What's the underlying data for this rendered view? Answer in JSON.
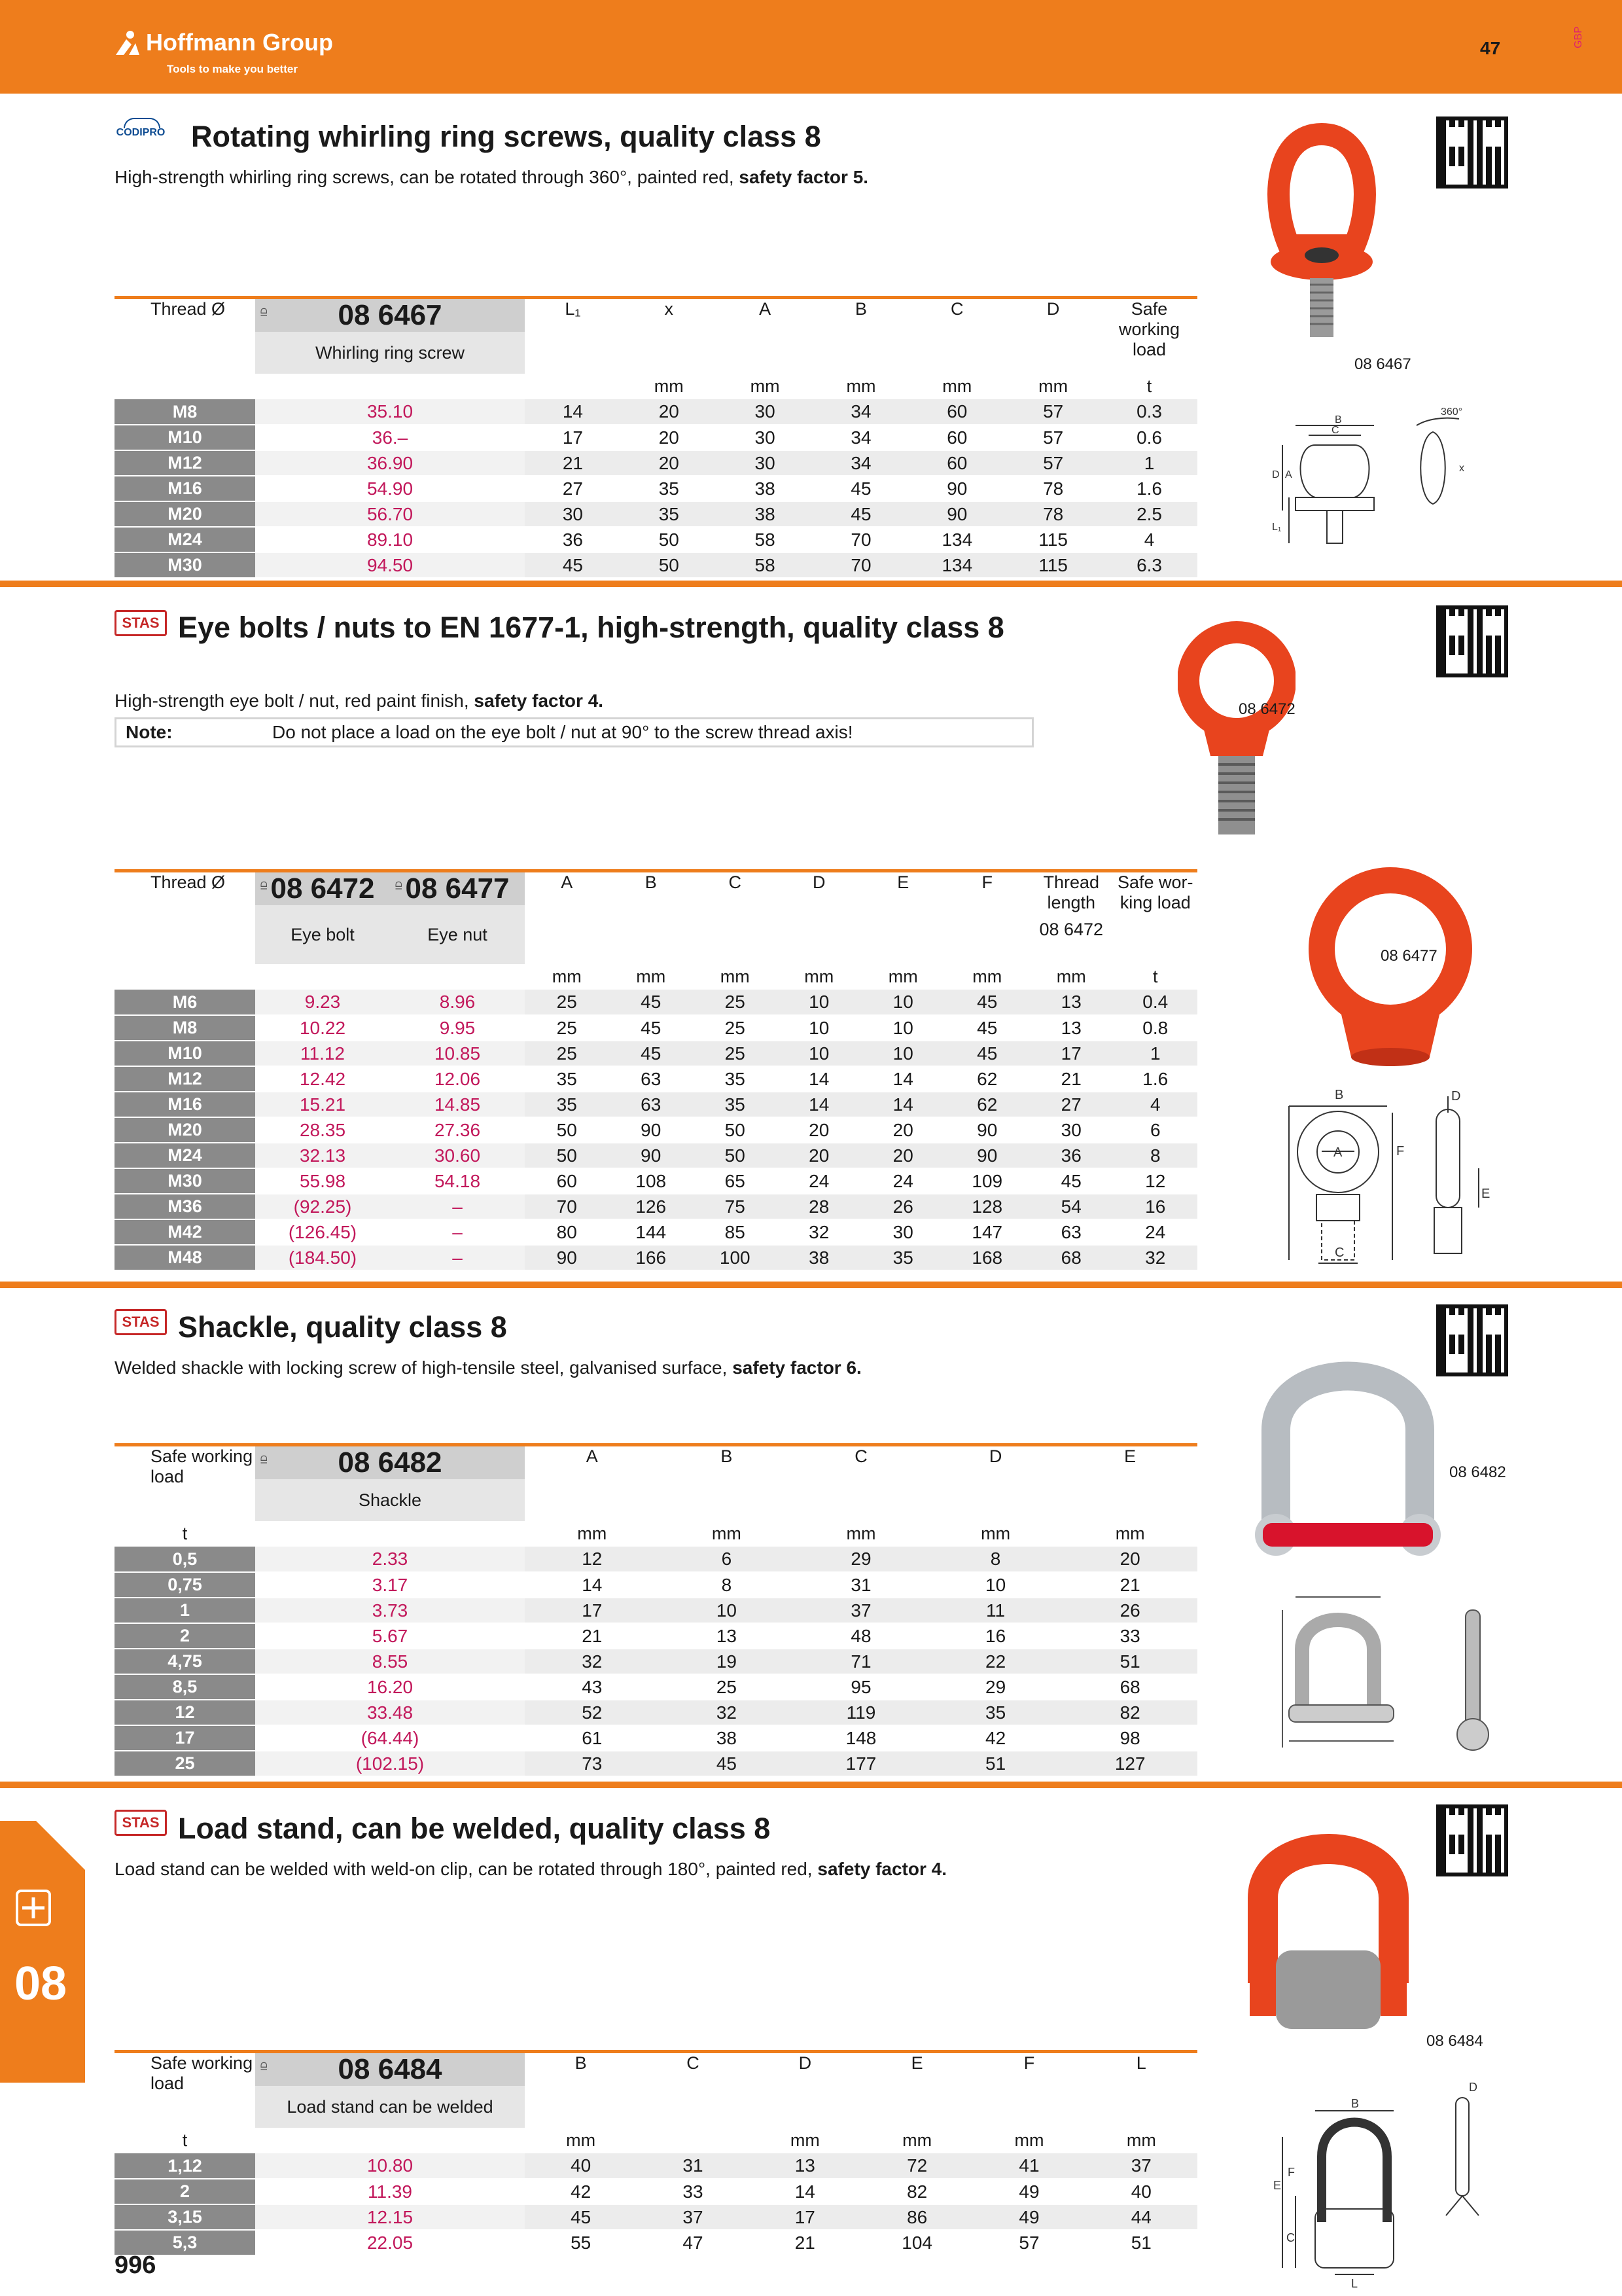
{
  "header": {
    "brand": "Hoffmann Group",
    "tagline": "Tools to make you better",
    "page": "47",
    "lang": "GBP"
  },
  "sections": [
    {
      "brand": "CODIPRO",
      "title": "Rotating whirling ring screws, quality class 8",
      "desc_plain": "High-strength whirling ring screws, can be rotated through 360°, painted red, ",
      "desc_bold": "safety factor 5.",
      "table": {
        "row_header": "Thread Ø",
        "articles": [
          {
            "number": "08 6467",
            "name": "Whirling ring screw"
          }
        ],
        "columns": [
          {
            "label": "L₁",
            "unit": ""
          },
          {
            "label": "x",
            "unit": "mm"
          },
          {
            "label": "A",
            "unit": "mm"
          },
          {
            "label": "B",
            "unit": "mm"
          },
          {
            "label": "C",
            "unit": "mm"
          },
          {
            "label": "D",
            "unit": "mm"
          },
          {
            "label": "Safe working load",
            "unit": "t"
          }
        ],
        "rows": [
          {
            "label": "M8",
            "prices": [
              "35.10"
            ],
            "values": [
              "14",
              "20",
              "30",
              "34",
              "60",
              "57",
              "0.3"
            ]
          },
          {
            "label": "M10",
            "prices": [
              "36.–"
            ],
            "values": [
              "17",
              "20",
              "30",
              "34",
              "60",
              "57",
              "0.6"
            ]
          },
          {
            "label": "M12",
            "prices": [
              "36.90"
            ],
            "values": [
              "21",
              "20",
              "30",
              "34",
              "60",
              "57",
              "1"
            ]
          },
          {
            "label": "M16",
            "prices": [
              "54.90"
            ],
            "values": [
              "27",
              "35",
              "38",
              "45",
              "90",
              "78",
              "1.6"
            ]
          },
          {
            "label": "M20",
            "prices": [
              "56.70"
            ],
            "values": [
              "30",
              "35",
              "38",
              "45",
              "90",
              "78",
              "2.5"
            ]
          },
          {
            "label": "M24",
            "prices": [
              "89.10"
            ],
            "values": [
              "36",
              "50",
              "58",
              "70",
              "134",
              "115",
              "4"
            ]
          },
          {
            "label": "M30",
            "prices": [
              "94.50"
            ],
            "values": [
              "45",
              "50",
              "58",
              "70",
              "134",
              "115",
              "6.3"
            ]
          }
        ]
      },
      "image_refs": [
        "08 6467"
      ],
      "dim_labels": [
        "B",
        "C",
        "D",
        "A",
        "L₁",
        "360°",
        "x"
      ]
    },
    {
      "brand": "STAS",
      "title": "Eye bolts / nuts to EN 1677-1, high-strength, quality class 8",
      "desc_plain": "High-strength eye bolt / nut, red paint finish, ",
      "desc_bold": "safety factor 4.",
      "note_label": "Note:",
      "note_text": "Do not place a load on the eye bolt / nut at 90° to the screw thread axis!",
      "table": {
        "row_header": "Thread Ø",
        "articles": [
          {
            "number": "08 6472",
            "name": "Eye bolt"
          },
          {
            "number": "08 6477",
            "name": "Eye nut"
          }
        ],
        "columns": [
          {
            "label": "A",
            "unit": "mm"
          },
          {
            "label": "B",
            "unit": "mm"
          },
          {
            "label": "C",
            "unit": "mm"
          },
          {
            "label": "D",
            "unit": "mm"
          },
          {
            "label": "E",
            "unit": "mm"
          },
          {
            "label": "F",
            "unit": "mm"
          },
          {
            "label": "Thread length",
            "sub": "08 6472",
            "unit": "mm"
          },
          {
            "label": "Safe wor-king load",
            "unit": "t"
          }
        ],
        "rows": [
          {
            "label": "M6",
            "prices": [
              "9.23",
              "8.96"
            ],
            "values": [
              "25",
              "45",
              "25",
              "10",
              "10",
              "45",
              "13",
              "0.4"
            ]
          },
          {
            "label": "M8",
            "prices": [
              "10.22",
              "9.95"
            ],
            "values": [
              "25",
              "45",
              "25",
              "10",
              "10",
              "45",
              "13",
              "0.8"
            ]
          },
          {
            "label": "M10",
            "prices": [
              "11.12",
              "10.85"
            ],
            "values": [
              "25",
              "45",
              "25",
              "10",
              "10",
              "45",
              "17",
              "1"
            ]
          },
          {
            "label": "M12",
            "prices": [
              "12.42",
              "12.06"
            ],
            "values": [
              "35",
              "63",
              "35",
              "14",
              "14",
              "62",
              "21",
              "1.6"
            ]
          },
          {
            "label": "M16",
            "prices": [
              "15.21",
              "14.85"
            ],
            "values": [
              "35",
              "63",
              "35",
              "14",
              "14",
              "62",
              "27",
              "4"
            ]
          },
          {
            "label": "M20",
            "prices": [
              "28.35",
              "27.36"
            ],
            "values": [
              "50",
              "90",
              "50",
              "20",
              "20",
              "90",
              "30",
              "6"
            ]
          },
          {
            "label": "M24",
            "prices": [
              "32.13",
              "30.60"
            ],
            "values": [
              "50",
              "90",
              "50",
              "20",
              "20",
              "90",
              "36",
              "8"
            ]
          },
          {
            "label": "M30",
            "prices": [
              "55.98",
              "54.18"
            ],
            "values": [
              "60",
              "108",
              "65",
              "24",
              "24",
              "109",
              "45",
              "12"
            ]
          },
          {
            "label": "M36",
            "prices": [
              "(92.25)",
              "–"
            ],
            "values": [
              "70",
              "126",
              "75",
              "28",
              "26",
              "128",
              "54",
              "16"
            ]
          },
          {
            "label": "M42",
            "prices": [
              "(126.45)",
              "–"
            ],
            "values": [
              "80",
              "144",
              "85",
              "32",
              "30",
              "147",
              "63",
              "24"
            ]
          },
          {
            "label": "M48",
            "prices": [
              "(184.50)",
              "–"
            ],
            "values": [
              "90",
              "166",
              "100",
              "38",
              "35",
              "168",
              "68",
              "32"
            ]
          }
        ]
      },
      "image_refs": [
        "08 6472",
        "08 6477"
      ],
      "dim_labels": [
        "B",
        "A",
        "F",
        "C",
        "D",
        "E"
      ]
    },
    {
      "brand": "STAS",
      "title": "Shackle, quality class 8",
      "desc_plain": "Welded shackle with locking screw of high-tensile steel, galvanised surface, ",
      "desc_bold": "safety factor 6.",
      "table": {
        "row_header": "Safe working load",
        "row_unit": "t",
        "articles": [
          {
            "number": "08 6482",
            "name": "Shackle"
          }
        ],
        "columns": [
          {
            "label": "A",
            "unit": "mm"
          },
          {
            "label": "B",
            "unit": "mm"
          },
          {
            "label": "C",
            "unit": "mm"
          },
          {
            "label": "D",
            "unit": "mm"
          },
          {
            "label": "E",
            "unit": "mm"
          }
        ],
        "rows": [
          {
            "label": "0,5",
            "prices": [
              "2.33"
            ],
            "values": [
              "12",
              "6",
              "29",
              "8",
              "20"
            ]
          },
          {
            "label": "0,75",
            "prices": [
              "3.17"
            ],
            "values": [
              "14",
              "8",
              "31",
              "10",
              "21"
            ]
          },
          {
            "label": "1",
            "prices": [
              "3.73"
            ],
            "values": [
              "17",
              "10",
              "37",
              "11",
              "26"
            ]
          },
          {
            "label": "2",
            "prices": [
              "5.67"
            ],
            "values": [
              "21",
              "13",
              "48",
              "16",
              "33"
            ]
          },
          {
            "label": "4,75",
            "prices": [
              "8.55"
            ],
            "values": [
              "32",
              "19",
              "71",
              "22",
              "51"
            ]
          },
          {
            "label": "8,5",
            "prices": [
              "16.20"
            ],
            "values": [
              "43",
              "25",
              "95",
              "29",
              "68"
            ]
          },
          {
            "label": "12",
            "prices": [
              "33.48"
            ],
            "values": [
              "52",
              "32",
              "119",
              "35",
              "82"
            ]
          },
          {
            "label": "17",
            "prices": [
              "(64.44)"
            ],
            "values": [
              "61",
              "38",
              "148",
              "42",
              "98"
            ]
          },
          {
            "label": "25",
            "prices": [
              "(102.15)"
            ],
            "values": [
              "73",
              "45",
              "177",
              "51",
              "127"
            ]
          }
        ]
      },
      "image_refs": [
        "08 6482"
      ]
    },
    {
      "brand": "STAS",
      "title": "Load stand, can be welded, quality class 8",
      "desc_plain": "Load stand can be welded with weld-on clip, can be rotated through 180°, painted red, ",
      "desc_bold": "safety factor 4.",
      "table": {
        "row_header": "Safe working load",
        "row_unit": "t",
        "articles": [
          {
            "number": "08 6484",
            "name": "Load stand can be welded"
          }
        ],
        "columns": [
          {
            "label": "B",
            "unit": "mm"
          },
          {
            "label": "C",
            "unit": ""
          },
          {
            "label": "D",
            "unit": "mm"
          },
          {
            "label": "E",
            "unit": "mm"
          },
          {
            "label": "F",
            "unit": "mm"
          },
          {
            "label": "L",
            "unit": "mm"
          }
        ],
        "rows": [
          {
            "label": "1,12",
            "prices": [
              "10.80"
            ],
            "values": [
              "40",
              "31",
              "13",
              "72",
              "41",
              "37"
            ]
          },
          {
            "label": "2",
            "prices": [
              "11.39"
            ],
            "values": [
              "42",
              "33",
              "14",
              "82",
              "49",
              "40"
            ]
          },
          {
            "label": "3,15",
            "prices": [
              "12.15"
            ],
            "values": [
              "45",
              "37",
              "17",
              "86",
              "49",
              "44"
            ]
          },
          {
            "label": "5,3",
            "prices": [
              "22.05"
            ],
            "values": [
              "55",
              "47",
              "21",
              "104",
              "57",
              "51"
            ]
          }
        ]
      },
      "image_refs": [
        "08 6484"
      ],
      "dim_labels": [
        "B",
        "D",
        "F",
        "E",
        "C",
        "L"
      ]
    }
  ],
  "side_tab": {
    "number": "08"
  },
  "footer": {
    "page_number": "996"
  },
  "colors": {
    "accent": "#ee7d1c",
    "price": "#c2185b",
    "row_label_bg": "#8a8a8a",
    "red_paint": "#e8441e"
  }
}
